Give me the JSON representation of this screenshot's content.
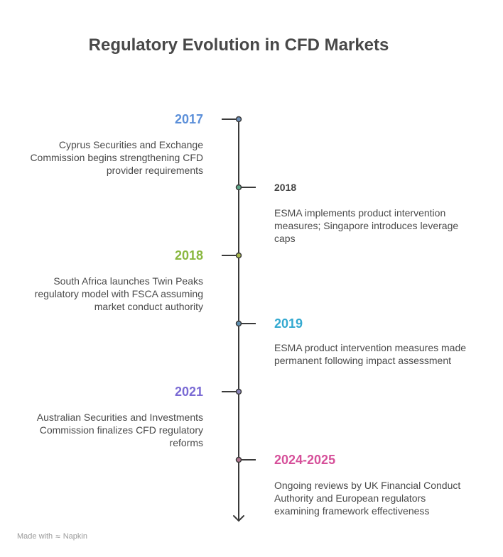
{
  "title": "Regulatory Evolution in CFD Markets",
  "events": [
    {
      "year": "2017",
      "text": "Cyprus Securities and Exchange Commission begins strengthening CFD provider requirements",
      "side": "left",
      "color": "#5b8fd9",
      "dot_fill": "#6d8fb8"
    },
    {
      "year": "2018",
      "text": "ESMA implements product intervention measures; Singapore introduces leverage caps",
      "side": "right",
      "color": "#444444",
      "dot_fill": "#5fa88a"
    },
    {
      "year": "2018",
      "text": "South Africa launches Twin Peaks regulatory model with FSCA assuming market conduct authority",
      "side": "left",
      "color": "#8ab840",
      "dot_fill": "#a8b84a"
    },
    {
      "year": "2019",
      "text": "ESMA product intervention measures made permanent following impact assessment",
      "side": "right",
      "color": "#33a9d0",
      "dot_fill": "#5f8fb0"
    },
    {
      "year": "2021",
      "text": "Australian Securities and Investments Commission finalizes CFD regulatory reforms",
      "side": "left",
      "color": "#7a6ad4",
      "dot_fill": "#8a84b8"
    },
    {
      "year": "2024-2025",
      "text": "Ongoing reviews by UK Financial Conduct Authority and European regulators examining framework effectiveness",
      "side": "right",
      "color": "#d6509a",
      "dot_fill": "#b07890"
    }
  ],
  "footer": {
    "made_with": "Made with",
    "brand": "Napkin"
  }
}
